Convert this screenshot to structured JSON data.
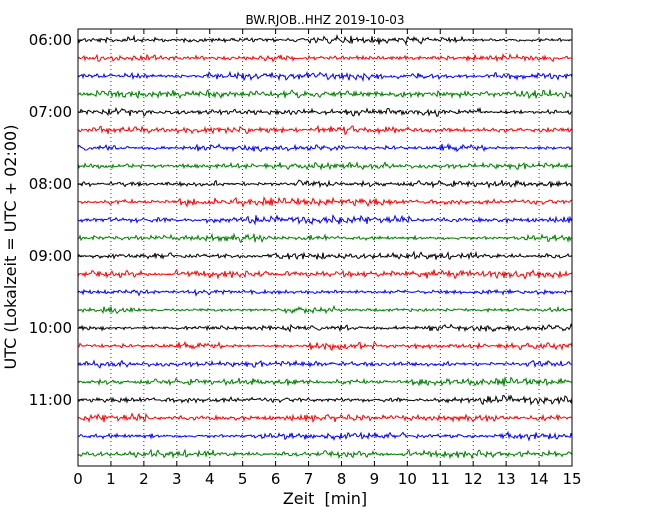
{
  "chart_data": {
    "type": "line",
    "title": "BW.RJOB..HHZ 2019-10-03",
    "xlabel": "Zeit  [min]",
    "ylabel": "UTC (Lokalzeit = UTC + 02:00)",
    "xlim": [
      0,
      15
    ],
    "x_ticks": [
      "0",
      "1",
      "2",
      "3",
      "4",
      "5",
      "6",
      "7",
      "8",
      "9",
      "10",
      "11",
      "12",
      "13",
      "14",
      "15"
    ],
    "y_ticks": [
      "06:00",
      "07:00",
      "08:00",
      "09:00",
      "10:00",
      "11:00"
    ],
    "grid": "vertical dotted",
    "trace_colors": [
      "#000000",
      "#ff0000",
      "#0000ff",
      "#007f00"
    ],
    "trace_start_times": [
      "06:00",
      "06:15",
      "06:30",
      "06:45",
      "07:00",
      "07:15",
      "07:30",
      "07:45",
      "08:00",
      "08:15",
      "08:30",
      "08:45",
      "09:00",
      "09:15",
      "09:30",
      "09:45",
      "10:00",
      "10:15",
      "10:30",
      "10:45",
      "11:00",
      "11:15",
      "11:30",
      "11:45"
    ]
  }
}
